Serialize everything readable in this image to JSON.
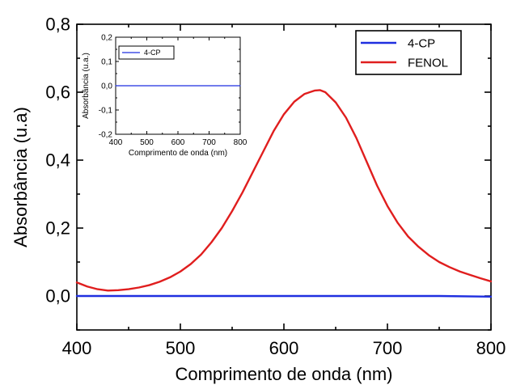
{
  "chart_data": [
    {
      "type": "line",
      "xlabel": "Comprimento de onda (nm)",
      "ylabel": "Absorbância (u.a)",
      "xlim": [
        400,
        800
      ],
      "ylim": [
        -0.1,
        0.8
      ],
      "xticks": [
        400,
        500,
        600,
        700,
        800
      ],
      "xtick_labels": [
        "400",
        "500",
        "600",
        "700",
        "800"
      ],
      "yticks": [
        0.0,
        0.2,
        0.4,
        0.6,
        0.8
      ],
      "ytick_labels": [
        "0,0",
        "0,2",
        "0,4",
        "0,6",
        "0,8"
      ],
      "grid": false,
      "legend_position": "top-right",
      "series": [
        {
          "name": "4-CP",
          "color": "#1f2fe0",
          "x": [
            400,
            450,
            500,
            550,
            600,
            650,
            700,
            750,
            800
          ],
          "y": [
            0.0,
            0.0,
            0.0,
            0.0,
            0.0,
            0.0,
            0.0,
            0.0,
            -0.002
          ]
        },
        {
          "name": "FENOL",
          "color": "#e01e1e",
          "x": [
            400,
            410,
            420,
            430,
            440,
            450,
            460,
            470,
            480,
            490,
            500,
            510,
            520,
            530,
            540,
            550,
            560,
            570,
            580,
            590,
            600,
            610,
            620,
            630,
            635,
            640,
            650,
            660,
            670,
            680,
            690,
            700,
            710,
            720,
            730,
            740,
            750,
            760,
            770,
            780,
            790,
            800
          ],
          "y": [
            0.04,
            0.028,
            0.02,
            0.016,
            0.017,
            0.02,
            0.025,
            0.032,
            0.042,
            0.055,
            0.072,
            0.094,
            0.122,
            0.158,
            0.2,
            0.25,
            0.305,
            0.365,
            0.425,
            0.485,
            0.535,
            0.572,
            0.595,
            0.605,
            0.606,
            0.6,
            0.57,
            0.525,
            0.465,
            0.395,
            0.325,
            0.265,
            0.215,
            0.175,
            0.145,
            0.12,
            0.1,
            0.085,
            0.072,
            0.062,
            0.052,
            0.043
          ]
        }
      ]
    },
    {
      "type": "line",
      "xlabel": "Comprimento de onda (nm)",
      "ylabel": "Absorbância (u.a.)",
      "xlim": [
        400,
        800
      ],
      "ylim": [
        -0.2,
        0.2
      ],
      "xticks": [
        400,
        500,
        600,
        700,
        800
      ],
      "xtick_labels": [
        "400",
        "500",
        "600",
        "700",
        "800"
      ],
      "yticks": [
        -0.2,
        -0.1,
        0.0,
        0.1,
        0.2
      ],
      "ytick_labels": [
        "-0,2",
        "-0,1",
        "0,0",
        "0,1",
        "0,2"
      ],
      "grid": false,
      "legend_position": "top-left",
      "series": [
        {
          "name": "4-CP",
          "color": "#1f2fe0",
          "x": [
            400,
            500,
            600,
            700,
            800
          ],
          "y": [
            0.0,
            0.0,
            0.0,
            0.0,
            0.0
          ]
        }
      ]
    }
  ]
}
